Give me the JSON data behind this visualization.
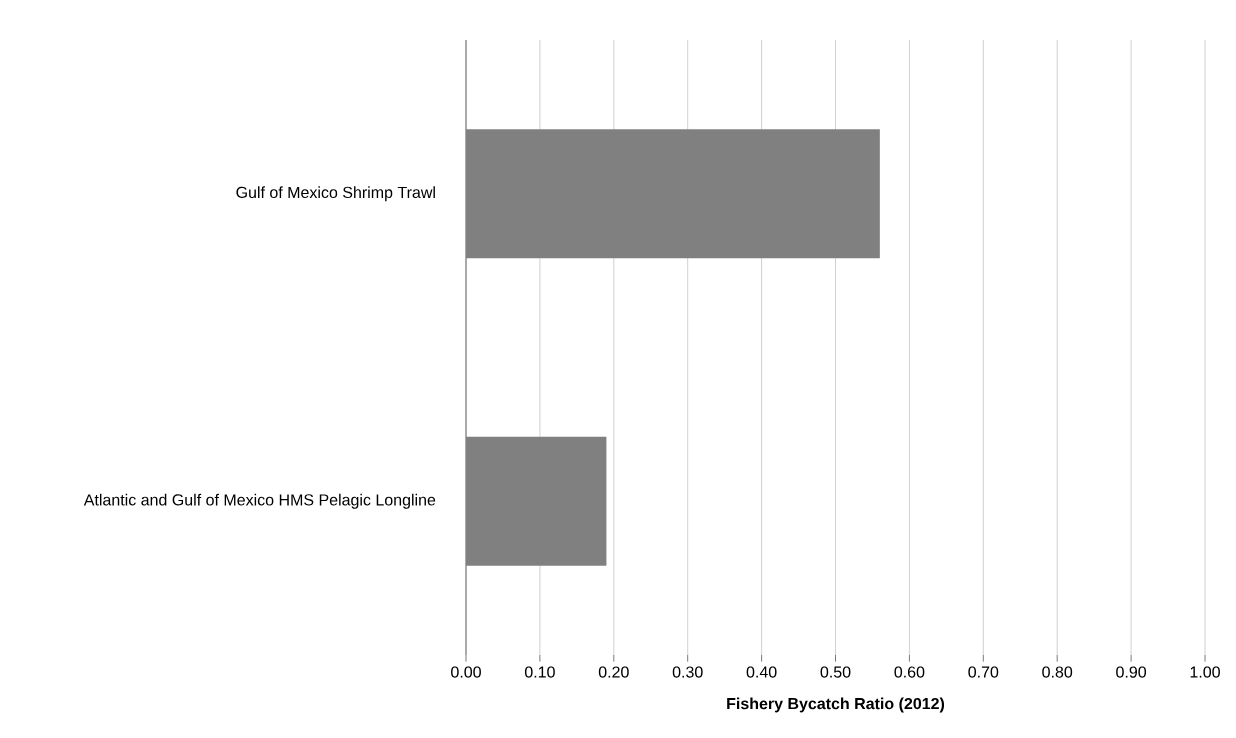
{
  "chart_data": {
    "type": "bar",
    "orientation": "horizontal",
    "xlabel": "Fishery Bycatch Ratio (2012)",
    "categories": [
      "Gulf of Mexico Shrimp Trawl",
      "Atlantic and Gulf of Mexico HMS Pelagic Longline"
    ],
    "values": [
      0.56,
      0.19
    ],
    "color": "#808080",
    "xlim": [
      0,
      1
    ],
    "xticks": [
      {
        "value": 0,
        "label": "0.00"
      },
      {
        "value": 0.1,
        "label": "0.10"
      },
      {
        "value": 0.2,
        "label": "0.20"
      },
      {
        "value": 0.3,
        "label": "0.30"
      },
      {
        "value": 0.4,
        "label": "0.40"
      },
      {
        "value": 0.5,
        "label": "0.50"
      },
      {
        "value": 0.6,
        "label": "0.60"
      },
      {
        "value": 0.7,
        "label": "0.70"
      },
      {
        "value": 0.8,
        "label": "0.80"
      },
      {
        "value": 0.9,
        "label": "0.90"
      },
      {
        "value": 1,
        "label": "1.00"
      }
    ],
    "grid": "x"
  }
}
